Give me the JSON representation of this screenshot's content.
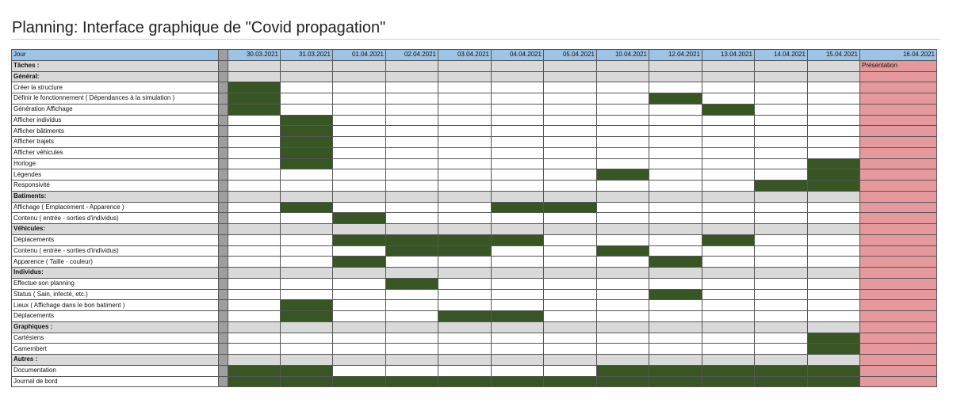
{
  "title": "Planning: Interface graphique de \"Covid propagation\"",
  "colors": {
    "header": "#9dc3e6",
    "section": "#d9d9d9",
    "task_bar": "#375623",
    "presentation": "#e6999c",
    "separator": "#9e9e9e"
  },
  "header": {
    "label": "Jour",
    "dates": [
      "30.03.2021",
      "31.03.2021",
      "01.04.2021",
      "02.04.2021",
      "03.04.2021",
      "04.04.2021",
      "05.04.2021",
      "10.04.2021",
      "12.04.2021",
      "13.04.2021",
      "14.04.2021",
      "15.04.2021",
      "16.04.2021"
    ]
  },
  "presentation_label": "Présentation",
  "rows": [
    {
      "label": "Tâches :",
      "type": "section",
      "filled": []
    },
    {
      "label": "Général:",
      "type": "section",
      "filled": []
    },
    {
      "label": "Créer la structure",
      "type": "task",
      "filled": [
        0
      ]
    },
    {
      "label": "Définir le fonctionnement ( Dépendances à la simulation )",
      "type": "task",
      "filled": [
        0,
        8
      ]
    },
    {
      "label": "Génération Affichage",
      "type": "task",
      "filled": [
        0,
        9
      ]
    },
    {
      "label": "Afficher individus",
      "type": "task",
      "filled": [
        1
      ]
    },
    {
      "label": "Afficher bâtiments",
      "type": "task",
      "filled": [
        1
      ]
    },
    {
      "label": "Afficher trajets",
      "type": "task",
      "filled": [
        1
      ]
    },
    {
      "label": "Afficher véhicules",
      "type": "task",
      "filled": [
        1
      ]
    },
    {
      "label": "Horloge",
      "type": "task",
      "filled": [
        1,
        11
      ]
    },
    {
      "label": "Légendes",
      "type": "task",
      "filled": [
        7,
        11
      ]
    },
    {
      "label": "Responsivité",
      "type": "task",
      "filled": [
        10,
        11
      ]
    },
    {
      "label": "Batiments:",
      "type": "section",
      "filled": []
    },
    {
      "label": "Affichage ( Emplacement - Apparence )",
      "type": "task",
      "filled": [
        1,
        5,
        6
      ]
    },
    {
      "label": "Contenu ( entrée - sorties d'individus)",
      "type": "task",
      "filled": [
        2
      ]
    },
    {
      "label": "Véhicules:",
      "type": "section",
      "filled": []
    },
    {
      "label": "Déplacements",
      "type": "task",
      "filled": [
        2,
        3,
        4,
        5,
        9
      ]
    },
    {
      "label": "Contenu ( entrée - sorties d'individus)",
      "type": "task",
      "filled": [
        3,
        4,
        7
      ]
    },
    {
      "label": "Apparence ( Taille - couleur)",
      "type": "task",
      "filled": [
        2,
        8
      ]
    },
    {
      "label": "Individus:",
      "type": "section",
      "filled": []
    },
    {
      "label": "Effectue son planning",
      "type": "task",
      "filled": [
        3
      ]
    },
    {
      "label": "Status ( Sain, infecté, etc.)",
      "type": "task",
      "filled": [
        8
      ]
    },
    {
      "label": "Lieux ( Affichage dans le bon batiment )",
      "type": "task",
      "filled": [
        1
      ]
    },
    {
      "label": "Déplacements",
      "type": "task",
      "filled": [
        1,
        4,
        5
      ]
    },
    {
      "label": "Graphiques :",
      "type": "section",
      "filled": []
    },
    {
      "label": "Cartésiens",
      "type": "task",
      "filled": [
        11
      ]
    },
    {
      "label": "Camembert",
      "type": "task",
      "filled": [
        11
      ]
    },
    {
      "label": "Autres :",
      "type": "section",
      "filled": []
    },
    {
      "label": "Documentation",
      "type": "task",
      "filled": [
        0,
        1,
        7,
        8,
        9,
        10,
        11
      ]
    },
    {
      "label": "Journal de bord",
      "type": "task",
      "filled": [
        0,
        1,
        2,
        3,
        4,
        5,
        6,
        7,
        8,
        9,
        10,
        11
      ]
    }
  ]
}
